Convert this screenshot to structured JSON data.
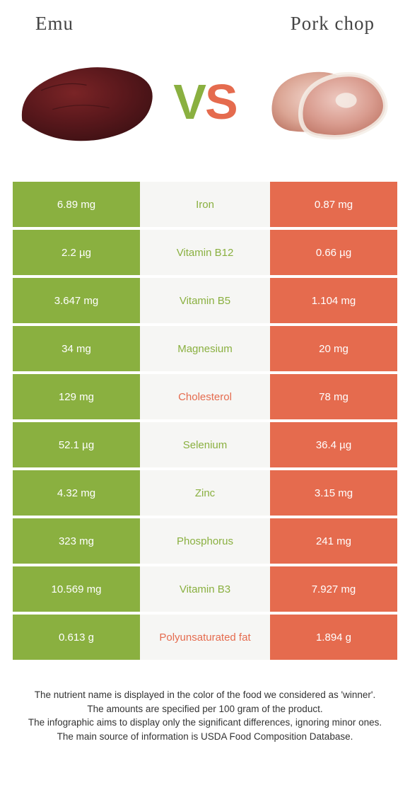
{
  "header": {
    "left": "Emu",
    "right": "Pork chop"
  },
  "vs": {
    "v": "V",
    "s": "S"
  },
  "colors": {
    "left": "#8ab040",
    "right": "#e56b4e",
    "midBg": "#f6f6f4"
  },
  "rows": [
    {
      "left": "6.89 mg",
      "label": "Iron",
      "right": "0.87 mg",
      "winner": "left"
    },
    {
      "left": "2.2 µg",
      "label": "Vitamin B12",
      "right": "0.66 µg",
      "winner": "left"
    },
    {
      "left": "3.647 mg",
      "label": "Vitamin B5",
      "right": "1.104 mg",
      "winner": "left"
    },
    {
      "left": "34 mg",
      "label": "Magnesium",
      "right": "20 mg",
      "winner": "left"
    },
    {
      "left": "129 mg",
      "label": "Cholesterol",
      "right": "78 mg",
      "winner": "right"
    },
    {
      "left": "52.1 µg",
      "label": "Selenium",
      "right": "36.4 µg",
      "winner": "left"
    },
    {
      "left": "4.32 mg",
      "label": "Zinc",
      "right": "3.15 mg",
      "winner": "left"
    },
    {
      "left": "323 mg",
      "label": "Phosphorus",
      "right": "241 mg",
      "winner": "left"
    },
    {
      "left": "10.569 mg",
      "label": "Vitamin B3",
      "right": "7.927 mg",
      "winner": "left"
    },
    {
      "left": "0.613 g",
      "label": "Polyunsaturated fat",
      "right": "1.894 g",
      "winner": "right"
    }
  ],
  "footer": {
    "l1": "The nutrient name is displayed in the color of the food we considered as 'winner'.",
    "l2": "The amounts are specified per 100 gram of the product.",
    "l3": "The infographic aims to display only the significant differences, ignoring minor ones.",
    "l4": "The main source of information is USDA Food Composition Database."
  }
}
